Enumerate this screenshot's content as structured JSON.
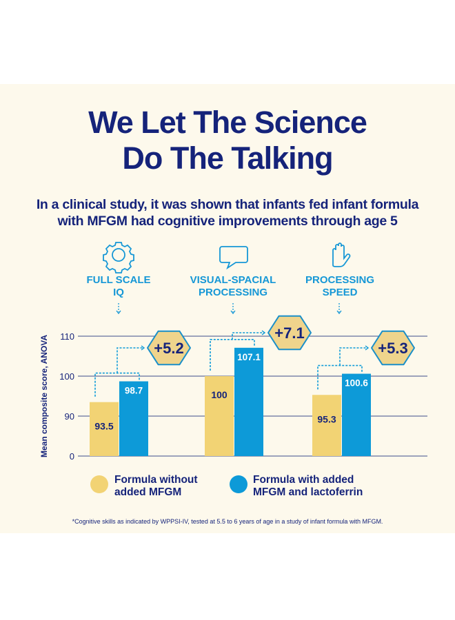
{
  "header": {
    "title_line1": "We Let The Science",
    "title_line2": "Do The Talking",
    "subtitle_line1": "In a clinical study, it was shown that infants fed infant formula",
    "subtitle_line2": "with MFGM had cognitive improvements through age 5"
  },
  "categories_display": [
    {
      "line1": "FULL SCALE",
      "line2": "IQ",
      "icon": "gear-icon"
    },
    {
      "line1": "VISUAL-SPACIAL",
      "line2": "PROCESSING",
      "icon": "speech-bubble-icon"
    },
    {
      "line1": "PROCESSING",
      "line2": "SPEED",
      "icon": "hand-icon"
    }
  ],
  "legend": [
    {
      "line1": "Formula without",
      "line2": "added MFGM",
      "color": "#f2d374"
    },
    {
      "line1": "Formula with added",
      "line2": "MFGM and lactoferrin",
      "color": "#0d9ad8"
    }
  ],
  "footnote": "*Cognitive skills as indicated by WPPSI-IV, tested at 5.5 to 6 years of age in a study of infant formula with MFGM.",
  "colors": {
    "navy": "#15237a",
    "blue": "#0d9ad8",
    "yellow": "#f2d374",
    "hex_fill": "#efd48c",
    "background": "#fdf9ec"
  },
  "chart_data": {
    "type": "bar",
    "categories": [
      "Full Scale IQ",
      "Visual-Spacial Processing",
      "Processing Speed"
    ],
    "series": [
      {
        "name": "Formula without added MFGM",
        "values": [
          93.5,
          100,
          95.3
        ],
        "labels": [
          "93.5",
          "100",
          "95.3"
        ]
      },
      {
        "name": "Formula with added MFGM and lactoferrin",
        "values": [
          98.7,
          107.1,
          100.6
        ],
        "labels": [
          "98.7",
          "107.1",
          "100.6"
        ]
      }
    ],
    "differences": [
      "+5.2",
      "+7.1",
      "+5.3"
    ],
    "ylabel": "Mean composite score, ANOVA",
    "yticks": [
      "0",
      "90",
      "100",
      "110"
    ],
    "ylim": [
      0,
      110
    ],
    "axis_break": "0 to 90 compressed",
    "grid": true,
    "legend": "bottom"
  }
}
